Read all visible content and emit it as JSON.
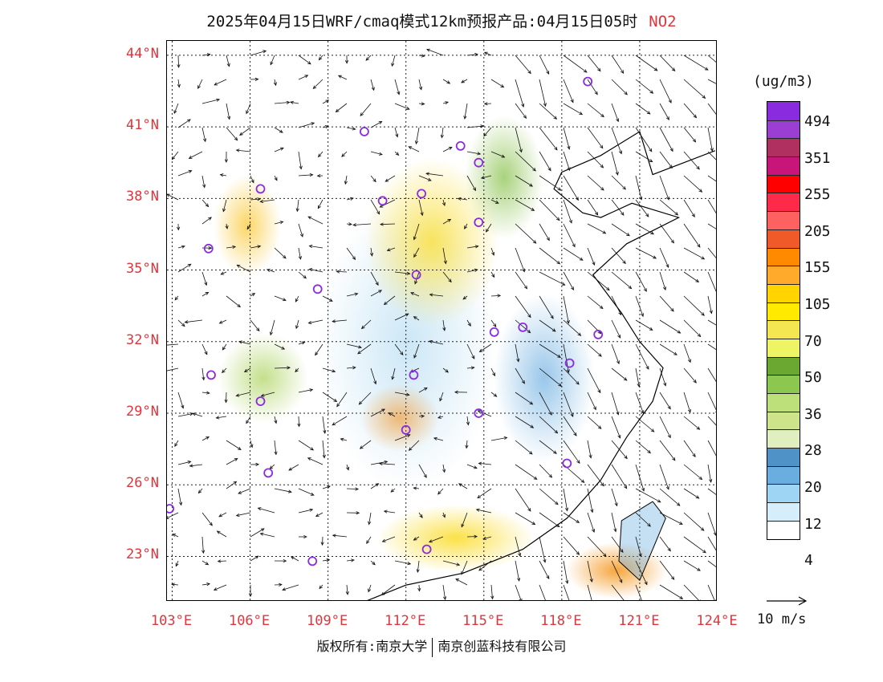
{
  "header": {
    "title": "2025年04月15日WRF/cmaq模式12km预报产品:04月15日05时",
    "species": "NO2"
  },
  "map": {
    "lat_labels": [
      "44°N",
      "41°N",
      "38°N",
      "35°N",
      "32°N",
      "29°N",
      "26°N",
      "23°N"
    ],
    "lon_labels": [
      "103°E",
      "106°E",
      "109°E",
      "112°E",
      "115°E",
      "118°E",
      "121°E",
      "124°E"
    ],
    "extent": {
      "lon_min": 102.8,
      "lon_max": 124.0,
      "lat_min": 21.1,
      "lat_max": 44.6
    },
    "stations": [
      {
        "lon": 119.0,
        "lat": 42.9
      },
      {
        "lon": 110.4,
        "lat": 40.8
      },
      {
        "lon": 114.1,
        "lat": 40.2
      },
      {
        "lon": 114.8,
        "lat": 39.5
      },
      {
        "lon": 106.4,
        "lat": 38.4
      },
      {
        "lon": 111.1,
        "lat": 37.9
      },
      {
        "lon": 112.6,
        "lat": 38.2
      },
      {
        "lon": 114.8,
        "lat": 37.0
      },
      {
        "lon": 104.4,
        "lat": 35.9
      },
      {
        "lon": 112.4,
        "lat": 34.8
      },
      {
        "lon": 108.6,
        "lat": 34.2
      },
      {
        "lon": 115.4,
        "lat": 32.4
      },
      {
        "lon": 116.5,
        "lat": 32.6
      },
      {
        "lon": 119.4,
        "lat": 32.3
      },
      {
        "lon": 118.3,
        "lat": 31.1
      },
      {
        "lon": 104.5,
        "lat": 30.6
      },
      {
        "lon": 112.3,
        "lat": 30.6
      },
      {
        "lon": 106.4,
        "lat": 29.5
      },
      {
        "lon": 114.8,
        "lat": 29.0
      },
      {
        "lon": 112.0,
        "lat": 28.3
      },
      {
        "lon": 118.2,
        "lat": 26.9
      },
      {
        "lon": 106.7,
        "lat": 26.5
      },
      {
        "lon": 102.9,
        "lat": 25.0
      },
      {
        "lon": 112.8,
        "lat": 23.3
      },
      {
        "lon": 108.4,
        "lat": 22.8
      }
    ]
  },
  "legend": {
    "unit": "(ug/m3)",
    "colors": [
      "#8b2be0",
      "#9a3fd2",
      "#b03060",
      "#c8157a",
      "#ff0000",
      "#ff2a4a",
      "#ff6060",
      "#f05a28",
      "#ff8a00",
      "#ffaa2a",
      "#ffd400",
      "#ffea00",
      "#f4e650",
      "#eef564",
      "#6aa832",
      "#8cc850",
      "#bde07a",
      "#cde48a",
      "#e0eec0",
      "#4f92c8",
      "#6aaee0",
      "#9ed4f4",
      "#d6eefb",
      "#ffffff"
    ],
    "labels": [
      "494",
      "351",
      "255",
      "205",
      "155",
      "105",
      "70",
      "50",
      "36",
      "28",
      "20",
      "12",
      "4"
    ]
  },
  "wind_ref": {
    "label": "10 m/s"
  },
  "footer": {
    "left": "版权所有:南京大学",
    "right": "南京创蓝科技有限公司"
  }
}
